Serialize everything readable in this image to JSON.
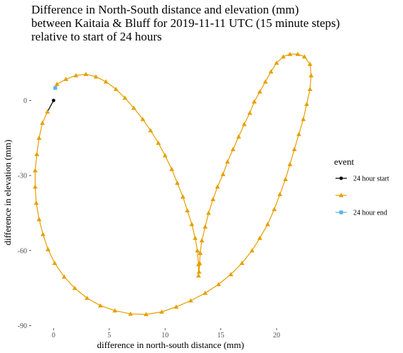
{
  "chart_data": {
    "type": "line",
    "title": [
      "Difference in North-South distance and elevation (mm)",
      "between Kaitaia & Bluff for 2019-11-11 UTC (15 minute steps)",
      "relative to start of 24 hours"
    ],
    "xlabel": "difference in north-south distance (mm)",
    "ylabel": "difference in elevation (mm)",
    "xlim": [
      -2,
      23.5
    ],
    "ylim": [
      -91,
      20
    ],
    "x_ticks": [
      0,
      5,
      10,
      15,
      20
    ],
    "y_ticks": [
      0,
      -30,
      -60,
      -90
    ],
    "grid": false,
    "legend": {
      "title": "event",
      "position": "right",
      "entries": [
        {
          "label": "24 hour start",
          "color": "#000000",
          "shape": "circle"
        },
        {
          "label": "",
          "color": "#E69F00",
          "shape": "triangle"
        },
        {
          "label": "24 hour end",
          "color": "#56B4E9",
          "shape": "square"
        }
      ]
    },
    "series": [
      {
        "color": "#000000",
        "shape": "circle",
        "points": [
          [
            0.0,
            0.0
          ]
        ]
      },
      {
        "color": "#E69F00",
        "shape": "triangle",
        "points": [
          [
            0.0,
            0.0
          ],
          [
            -0.55,
            -4.5
          ],
          [
            -1.0,
            -9.0
          ],
          [
            -1.3,
            -15.0
          ],
          [
            -1.5,
            -21.5
          ],
          [
            -1.65,
            -28.0
          ],
          [
            -1.65,
            -34.5
          ],
          [
            -1.55,
            -41.0
          ],
          [
            -1.3,
            -47.5
          ],
          [
            -0.95,
            -53.5
          ],
          [
            -0.5,
            -59.5
          ],
          [
            0.1,
            -65.0
          ],
          [
            0.95,
            -70.5
          ],
          [
            1.9,
            -75.0
          ],
          [
            3.0,
            -79.0
          ],
          [
            4.2,
            -82.0
          ],
          [
            5.5,
            -84.0
          ],
          [
            6.9,
            -85.3
          ],
          [
            8.3,
            -85.5
          ],
          [
            9.7,
            -84.5
          ],
          [
            11.0,
            -82.5
          ],
          [
            12.3,
            -80.0
          ],
          [
            13.6,
            -77.0
          ],
          [
            14.8,
            -73.5
          ],
          [
            15.9,
            -69.5
          ],
          [
            16.9,
            -65.0
          ],
          [
            17.8,
            -60.0
          ],
          [
            18.5,
            -55.0
          ],
          [
            19.2,
            -49.5
          ],
          [
            19.8,
            -43.5
          ],
          [
            20.3,
            -37.5
          ],
          [
            20.8,
            -31.5
          ],
          [
            21.2,
            -25.5
          ],
          [
            21.6,
            -19.5
          ],
          [
            22.0,
            -13.5
          ],
          [
            22.4,
            -7.5
          ],
          [
            22.7,
            -1.5
          ],
          [
            23.0,
            4.5
          ],
          [
            23.1,
            10.0
          ],
          [
            23.0,
            14.5
          ],
          [
            22.5,
            17.5
          ],
          [
            21.9,
            18.5
          ],
          [
            21.2,
            18.5
          ],
          [
            20.6,
            17.5
          ],
          [
            20.0,
            15.0
          ],
          [
            19.5,
            11.5
          ],
          [
            19.0,
            7.5
          ],
          [
            18.5,
            3.5
          ],
          [
            18.0,
            -0.5
          ],
          [
            17.6,
            -5.0
          ],
          [
            17.1,
            -9.5
          ],
          [
            16.6,
            -14.5
          ],
          [
            16.1,
            -19.5
          ],
          [
            15.6,
            -24.5
          ],
          [
            15.2,
            -29.5
          ],
          [
            14.7,
            -34.5
          ],
          [
            14.3,
            -39.5
          ],
          [
            13.9,
            -45.0
          ],
          [
            13.6,
            -50.5
          ],
          [
            13.3,
            -56.0
          ],
          [
            13.15,
            -61.0
          ],
          [
            13.1,
            -65.0
          ],
          [
            13.05,
            -68.5
          ],
          [
            13.0,
            -70.0
          ],
          [
            13.0,
            -65.5
          ],
          [
            12.9,
            -60.0
          ],
          [
            12.7,
            -55.0
          ],
          [
            12.4,
            -49.5
          ],
          [
            12.0,
            -44.0
          ],
          [
            11.6,
            -38.5
          ],
          [
            11.1,
            -33.0
          ],
          [
            10.6,
            -27.5
          ],
          [
            10.0,
            -22.0
          ],
          [
            9.4,
            -17.0
          ],
          [
            8.7,
            -12.0
          ],
          [
            8.0,
            -7.5
          ],
          [
            7.2,
            -3.0
          ],
          [
            6.4,
            1.0
          ],
          [
            5.6,
            4.5
          ],
          [
            4.7,
            7.5
          ],
          [
            3.8,
            9.5
          ],
          [
            2.9,
            10.5
          ],
          [
            2.0,
            10.0
          ],
          [
            1.1,
            8.5
          ],
          [
            0.3,
            6.5
          ],
          [
            0.15,
            5.0
          ]
        ]
      },
      {
        "color": "#56B4E9",
        "shape": "square",
        "points": [
          [
            0.15,
            5.0
          ]
        ]
      }
    ]
  }
}
